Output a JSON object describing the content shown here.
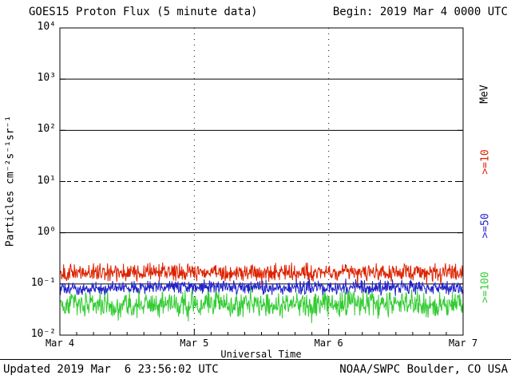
{
  "header": {
    "title": "GOES15 Proton Flux (5 minute data)",
    "begin": "Begin: 2019 Mar 4 0000 UTC"
  },
  "footer": {
    "updated": "Updated 2019 Mar  6 23:56:02 UTC",
    "source": "NOAA/SWPC Boulder, CO USA"
  },
  "chart_data": {
    "type": "line",
    "title": "GOES15 Proton Flux (5 minute data)",
    "xlabel": "Universal Time",
    "ylabel": "Particles cm⁻²s⁻¹sr⁻¹",
    "y_scale": "log",
    "ylim": [
      0.01,
      10000
    ],
    "y_tick_exponents": [
      4,
      3,
      2,
      1,
      0,
      -1,
      -2
    ],
    "y_tick_labels": [
      "10⁴",
      "10³",
      "10²",
      "10¹",
      "10⁰",
      "10⁻¹",
      "10⁻²"
    ],
    "x_range_days": [
      0,
      3
    ],
    "x_tick_labels": [
      "Mar 4",
      "Mar 5",
      "Mar 6",
      "Mar 7"
    ],
    "cadence_minutes": 5,
    "solid_gridline_exponents": [
      3,
      2,
      0,
      -1
    ],
    "dashed_gridline_exponents": [
      1
    ],
    "vertical_gridline_days": [
      1,
      2
    ],
    "units_label": "MeV",
    "series": [
      {
        "name": ">=10 MeV proton flux",
        "axis_label": ">=10",
        "color": "#dd2200",
        "baseline_flux": 0.17,
        "noise_log10_amplitude": 0.2,
        "approx_range": [
          0.1,
          0.35
        ]
      },
      {
        "name": ">=50 MeV proton flux",
        "axis_label": ">=50",
        "color": "#2222cc",
        "baseline_flux": 0.085,
        "noise_log10_amplitude": 0.17,
        "approx_range": [
          0.05,
          0.13
        ]
      },
      {
        "name": ">=100 MeV proton flux",
        "axis_label": ">=100",
        "color": "#33cc33",
        "baseline_flux": 0.04,
        "noise_log10_amplitude": 0.3,
        "approx_range": [
          0.02,
          0.09
        ]
      }
    ]
  }
}
